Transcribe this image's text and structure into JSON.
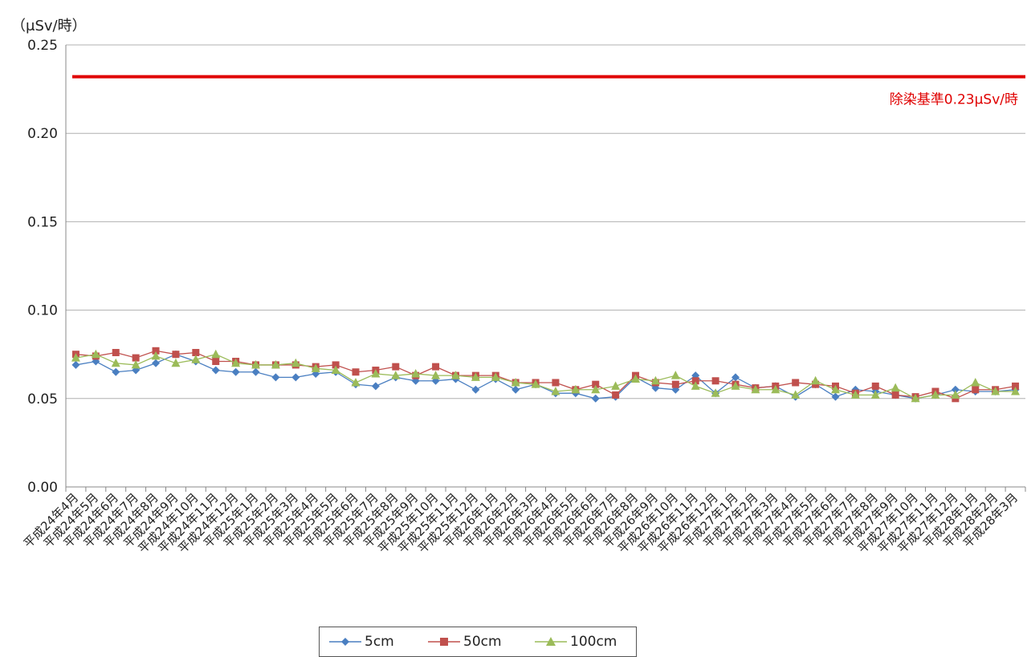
{
  "chart_data": {
    "type": "line",
    "unit_label": "（μSv/時）",
    "ylim": [
      0,
      0.25
    ],
    "yticks": [
      "0.00",
      "0.05",
      "0.10",
      "0.15",
      "0.20",
      "0.25"
    ],
    "grid": true,
    "legend_position": "bottom",
    "reference_line": {
      "value": 0.232,
      "label": "除染基準0.23μSv/時",
      "color": "#e00000"
    },
    "categories": [
      "平成24年4月",
      "平成24年5月",
      "平成24年6月",
      "平成24年7月",
      "平成24年8月",
      "平成24年9月",
      "平成24年10月",
      "平成24年11月",
      "平成24年12月",
      "平成25年1月",
      "平成25年2月",
      "平成25年3月",
      "平成25年4月",
      "平成25年5月",
      "平成25年6月",
      "平成25年7月",
      "平成25年8月",
      "平成25年9月",
      "平成25年10月",
      "平成25年11月",
      "平成25年12月",
      "平成26年1月",
      "平成26年2月",
      "平成26年3月",
      "平成26年4月",
      "平成26年5月",
      "平成26年6月",
      "平成26年7月",
      "平成26年8月",
      "平成26年9月",
      "平成26年10月",
      "平成26年11月",
      "平成26年12月",
      "平成27年1月",
      "平成27年2月",
      "平成27年3月",
      "平成27年4月",
      "平成27年5月",
      "平成27年6月",
      "平成27年7月",
      "平成27年8月",
      "平成27年9月",
      "平成27年10月",
      "平成27年11月",
      "平成27年12月",
      "平成28年1月",
      "平成28年2月",
      "平成28年3月"
    ],
    "series": [
      {
        "name": "5cm",
        "color": "#4a7fc1",
        "marker": "diamond",
        "values": [
          0.069,
          0.071,
          0.065,
          0.066,
          0.07,
          0.075,
          0.071,
          0.066,
          0.065,
          0.065,
          0.062,
          0.062,
          0.064,
          0.065,
          0.058,
          0.057,
          0.062,
          0.06,
          0.06,
          0.061,
          0.055,
          0.061,
          0.055,
          0.058,
          0.053,
          0.053,
          0.05,
          0.051,
          0.062,
          0.056,
          0.055,
          0.063,
          0.053,
          0.062,
          0.056,
          0.057,
          0.051,
          0.058,
          0.051,
          0.055,
          0.054,
          0.052,
          0.05,
          0.052,
          0.055,
          0.054,
          0.054,
          0.055
        ]
      },
      {
        "name": "50cm",
        "color": "#c0504d",
        "marker": "square",
        "values": [
          0.075,
          0.074,
          0.076,
          0.073,
          0.077,
          0.075,
          0.076,
          0.071,
          0.071,
          0.069,
          0.069,
          0.069,
          0.068,
          0.069,
          0.065,
          0.066,
          0.068,
          0.063,
          0.068,
          0.063,
          0.063,
          0.063,
          0.059,
          0.059,
          0.059,
          0.055,
          0.058,
          0.052,
          0.063,
          0.059,
          0.058,
          0.06,
          0.06,
          0.058,
          0.056,
          0.057,
          0.059,
          0.058,
          0.057,
          0.053,
          0.057,
          0.052,
          0.051,
          0.054,
          0.05,
          0.055,
          0.055,
          0.057
        ]
      },
      {
        "name": "100cm",
        "color": "#9bbb59",
        "marker": "triangle",
        "values": [
          0.073,
          0.075,
          0.07,
          0.069,
          0.074,
          0.07,
          0.072,
          0.075,
          0.07,
          0.069,
          0.069,
          0.07,
          0.067,
          0.066,
          0.059,
          0.064,
          0.063,
          0.064,
          0.063,
          0.063,
          0.062,
          0.062,
          0.059,
          0.058,
          0.054,
          0.055,
          0.055,
          0.057,
          0.061,
          0.06,
          0.063,
          0.057,
          0.053,
          0.057,
          0.055,
          0.055,
          0.052,
          0.06,
          0.055,
          0.052,
          0.052,
          0.056,
          0.05,
          0.052,
          0.052,
          0.059,
          0.054,
          0.054
        ]
      }
    ]
  }
}
